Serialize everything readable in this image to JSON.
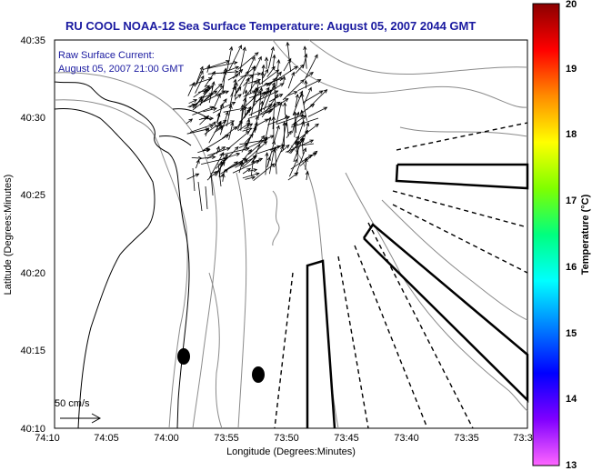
{
  "title": "RU COOL  NOAA-12  Sea Surface Temperature:  August 05, 2007 2044 GMT",
  "current_note": {
    "line1": "Raw Surface Current:",
    "line2": "August 05, 2007 21:00 GMT"
  },
  "scale": {
    "label": "50 cm/s"
  },
  "axes": {
    "xlabel": "Longitude (Degrees:Minutes)",
    "ylabel": "Latitude (Degrees:Minutes)",
    "x_ticks": [
      "74:10",
      "74:05",
      "74:00",
      "73:55",
      "73:50",
      "73:45",
      "73:40",
      "73:35",
      "73:3"
    ],
    "y_ticks": [
      "40:35",
      "40:30",
      "40:25",
      "40:20",
      "40:15",
      "40:10"
    ]
  },
  "colorbar": {
    "label": "Temperature (°C)",
    "ticks": [
      "20",
      "19",
      "18",
      "17",
      "16",
      "15",
      "14",
      "13"
    ],
    "stops": [
      "#8b0000",
      "#ff0000",
      "#ff8c00",
      "#ffff00",
      "#7fff00",
      "#00ff7f",
      "#00ffff",
      "#0080ff",
      "#0000ff",
      "#8000ff",
      "#ff66ff"
    ]
  },
  "colors": {
    "title": "#1a1aa0",
    "land_outline": "#000000",
    "contour": "#888888"
  }
}
